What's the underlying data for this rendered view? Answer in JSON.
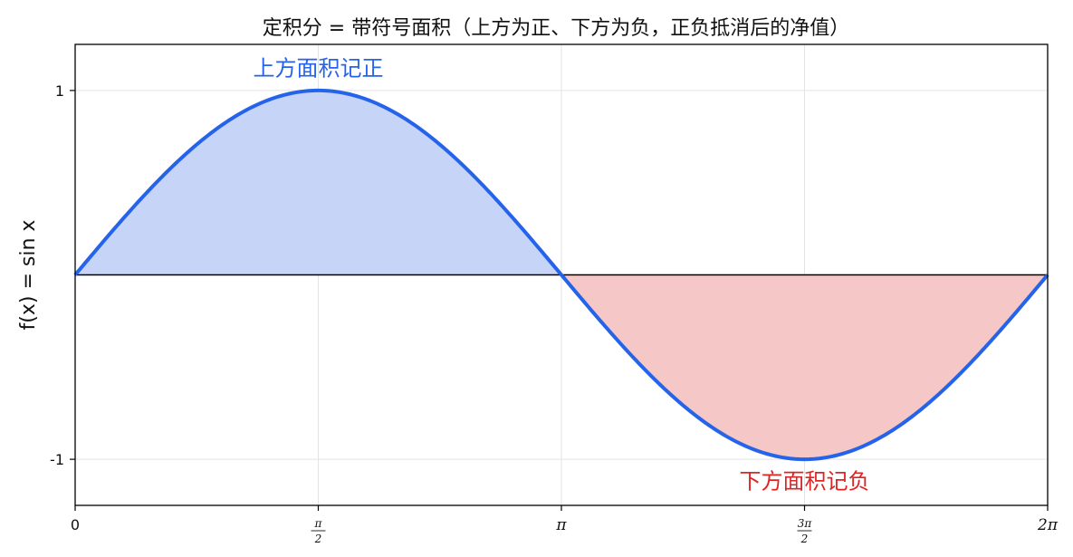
{
  "chart_data": {
    "type": "area",
    "title": "定积分 = 带符号面积（上方为正、下方为负，正负抵消后的净值）",
    "xlabel": "",
    "ylabel": "f(x) = sin x",
    "function": "sin",
    "xlim": [
      0,
      6.283185307
    ],
    "ylim": [
      -1.25,
      1.25
    ],
    "grid": true,
    "x_ticks": [
      {
        "value": 0,
        "label": "0"
      },
      {
        "value": 1.5707963,
        "label": "π/2",
        "num": "π",
        "den": "2"
      },
      {
        "value": 3.1415927,
        "label": "π"
      },
      {
        "value": 4.712389,
        "label": "3π/2",
        "num": "3π",
        "den": "2"
      },
      {
        "value": 6.2831853,
        "label": "2π"
      }
    ],
    "y_ticks": [
      {
        "value": 1,
        "label": "1"
      },
      {
        "value": -1,
        "label": "-1"
      }
    ],
    "series": [
      {
        "x": [
          0,
          0.785398,
          1.570796,
          2.356194,
          3.141593,
          3.926991,
          4.712389,
          5.497787,
          6.283185
        ],
        "values": [
          0,
          0.7071,
          1,
          0.7071,
          0,
          -0.7071,
          -1,
          -0.7071,
          0
        ],
        "color": "#2563eb"
      }
    ],
    "fill_positive_color": "#c6d5f7",
    "fill_negative_color": "#f5c7c7",
    "annotations": [
      {
        "text": "上方面积记正",
        "x": 1.5707963,
        "y": 1.12,
        "color": "#2563eb"
      },
      {
        "text": "下方面积记负",
        "x": 4.712389,
        "y": -1.12,
        "color": "#dc2626"
      }
    ]
  }
}
